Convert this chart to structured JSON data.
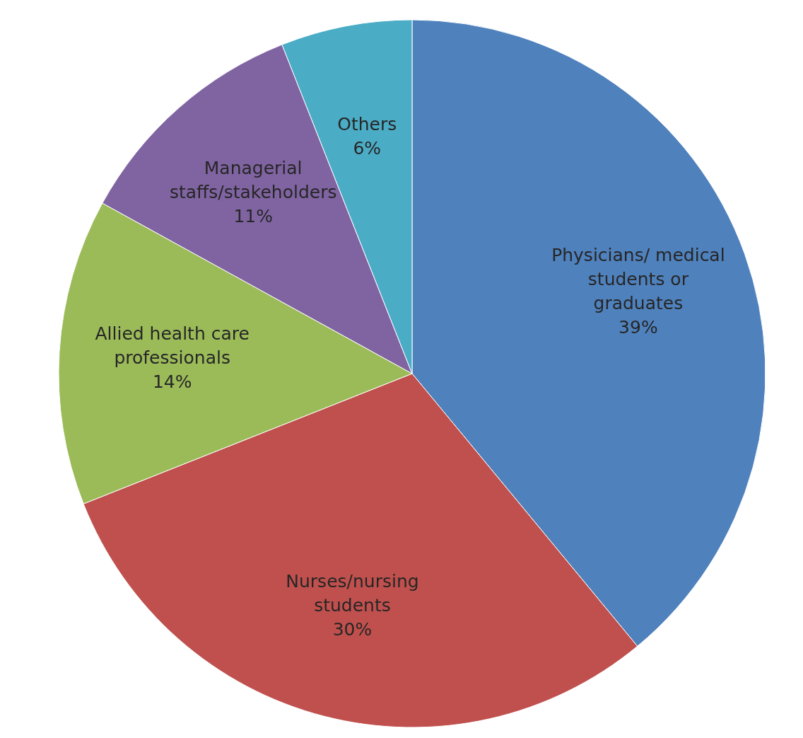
{
  "chart_data": {
    "type": "pie",
    "categories": [
      "Physicians/ medical students or graduates",
      "Nurses/nursing students",
      "Allied health care professionals",
      "Managerial staffs/stakeholders",
      "Others"
    ],
    "values": [
      39,
      30,
      14,
      11,
      6
    ],
    "colors": [
      "#4f81bd",
      "#c0504d",
      "#9bbb59",
      "#8064a2",
      "#4bacc6"
    ],
    "value_labels": [
      "39%",
      "30%",
      "14%",
      "11%",
      "6%"
    ]
  }
}
